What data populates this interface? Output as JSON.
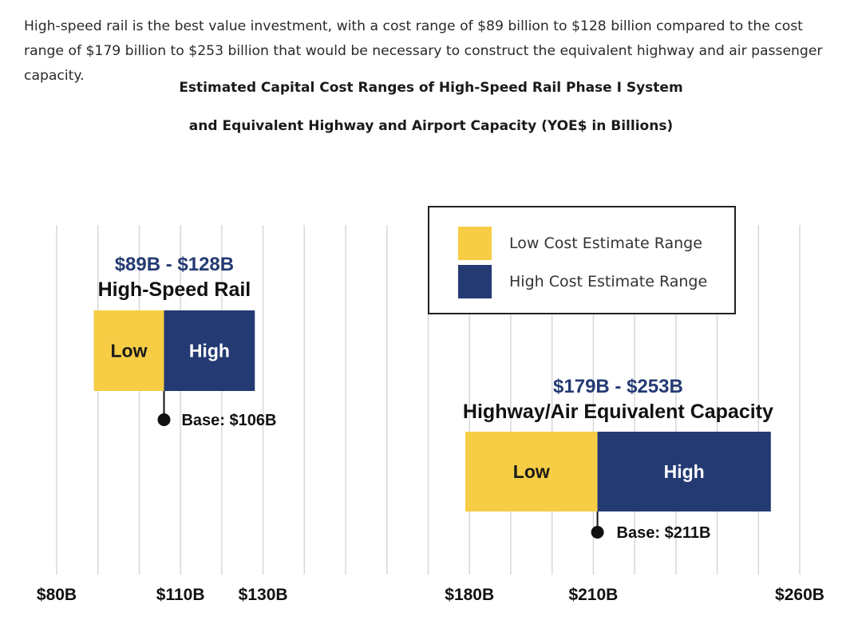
{
  "intro_text": "High-speed rail is the best value investment, with a cost range of $89 billion to $128 billion compared to the cost range of $179 billion to $253 billion that would be necessary to construct the equivalent highway and air passenger capacity.",
  "title_line1": "Estimated Capital Cost Ranges of High-Speed Rail Phase I System",
  "title_line2": "and Equivalent Highway and Airport Capacity (YOE$ in Billions)",
  "legend": {
    "low_label": "Low Cost Estimate Range",
    "high_label": "High Cost Estimate Range"
  },
  "colors": {
    "low": "#f6cd45",
    "high": "#243a73",
    "grid": "#d8d8d8"
  },
  "chart_data": {
    "type": "bar",
    "orientation": "horizontal",
    "xlim": [
      80,
      260
    ],
    "x_tick_labels": [
      {
        "value": 80,
        "label": "$80B"
      },
      {
        "value": 110,
        "label": "$110B"
      },
      {
        "value": 130,
        "label": "$130B"
      },
      {
        "value": 180,
        "label": "$180B"
      },
      {
        "value": 210,
        "label": "$210B"
      },
      {
        "value": 260,
        "label": "$260B"
      }
    ],
    "grid": true,
    "legend_position": "top-right",
    "bars": [
      {
        "range_label": "$89B - $128B",
        "name": "High-Speed Rail",
        "low": 89,
        "base": 106,
        "high": 128,
        "low_text": "Low",
        "high_text": "High",
        "base_label": "Base: $106B"
      },
      {
        "range_label": "$179B - $253B",
        "name": "Highway/Air Equivalent Capacity",
        "low": 179,
        "base": 211,
        "high": 253,
        "low_text": "Low",
        "high_text": "High",
        "base_label": "Base: $211B"
      }
    ]
  }
}
